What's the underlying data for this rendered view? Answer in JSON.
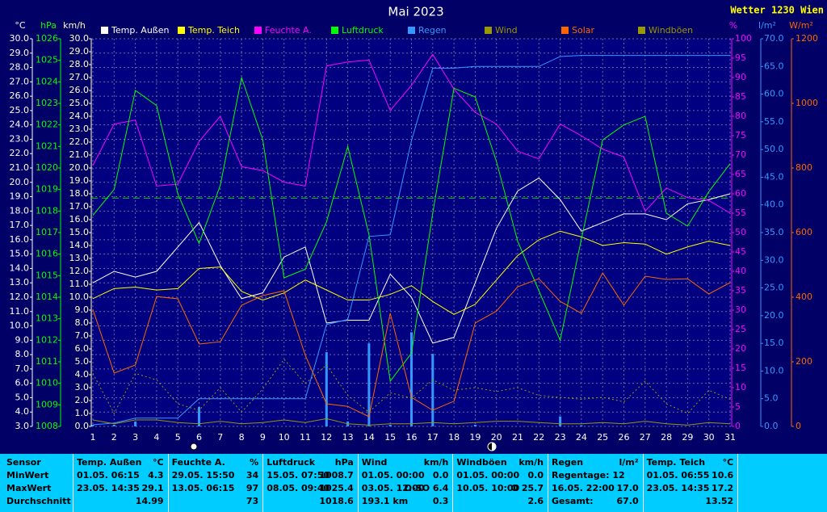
{
  "chart_data": {
    "type": "line",
    "title": "Mai 2023",
    "station": "Wetter 1230 Wien",
    "x": [
      1,
      2,
      3,
      4,
      5,
      6,
      7,
      8,
      9,
      10,
      11,
      12,
      13,
      14,
      15,
      16,
      17,
      18,
      19,
      20,
      21,
      22,
      23,
      24,
      25,
      26,
      27,
      28,
      29,
      30,
      31
    ],
    "xlim": [
      1,
      31
    ],
    "ylabel": "°C",
    "ylim": [
      3,
      30
    ],
    "yticks": [
      {
        "value": 3,
        "label": "3.0"
      },
      {
        "value": 4,
        "label": "4.0"
      },
      {
        "value": 5,
        "label": "5.0"
      },
      {
        "value": 6,
        "label": "6.0"
      },
      {
        "value": 7,
        "label": "7.0"
      },
      {
        "value": 8,
        "label": "8.0"
      },
      {
        "value": 9,
        "label": "9.0"
      },
      {
        "value": 10,
        "label": "10.0"
      },
      {
        "value": 11,
        "label": "11.0"
      },
      {
        "value": 12,
        "label": "12.0"
      },
      {
        "value": 13,
        "label": "13.0"
      },
      {
        "value": 14,
        "label": "14.0"
      },
      {
        "value": 15,
        "label": "15.0"
      },
      {
        "value": 16,
        "label": "16.0"
      },
      {
        "value": 17,
        "label": "17.0"
      },
      {
        "value": 18,
        "label": "18.0"
      },
      {
        "value": 19,
        "label": "19.0"
      },
      {
        "value": 20,
        "label": "20.0"
      },
      {
        "value": 21,
        "label": "21.0"
      },
      {
        "value": 22,
        "label": "22.0"
      },
      {
        "value": 23,
        "label": "23.0"
      },
      {
        "value": 24,
        "label": "24.0"
      },
      {
        "value": 25,
        "label": "25.0"
      },
      {
        "value": 26,
        "label": "26.0"
      },
      {
        "value": 27,
        "label": "27.0"
      },
      {
        "value": 28,
        "label": "28.0"
      },
      {
        "value": 29,
        "label": "29.0"
      },
      {
        "value": 30,
        "label": "30.0"
      }
    ],
    "y2label": "hPa",
    "y2lim": [
      1008,
      1026
    ],
    "y2ticks": [
      1008,
      1009,
      1010,
      1011,
      1012,
      1013,
      1014,
      1015,
      1016,
      1017,
      1018,
      1019,
      1020,
      1021,
      1022,
      1023,
      1024,
      1025,
      1026
    ],
    "y3label": "km/h",
    "y3lim": [
      0,
      30
    ],
    "y3ticks": [
      {
        "value": 0,
        "label": "0.0"
      },
      {
        "value": 1,
        "label": "1.0"
      },
      {
        "value": 2,
        "label": "2.0"
      },
      {
        "value": 3,
        "label": "3.0"
      },
      {
        "value": 4,
        "label": "4.0"
      },
      {
        "value": 5,
        "label": "5.0"
      },
      {
        "value": 6,
        "label": "6.0"
      },
      {
        "value": 7,
        "label": "7.0"
      },
      {
        "value": 8,
        "label": "8.0"
      },
      {
        "value": 9,
        "label": "9.0"
      },
      {
        "value": 10,
        "label": "10.0"
      },
      {
        "value": 11,
        "label": "11.0"
      },
      {
        "value": 12,
        "label": "12.0"
      },
      {
        "value": 13,
        "label": "13.0"
      },
      {
        "value": 14,
        "label": "14.0"
      },
      {
        "value": 15,
        "label": "15.0"
      },
      {
        "value": 16,
        "label": "16.0"
      },
      {
        "value": 17,
        "label": "17.0"
      },
      {
        "value": 18,
        "label": "18.0"
      },
      {
        "value": 19,
        "label": "19.0"
      },
      {
        "value": 20,
        "label": "20.0"
      },
      {
        "value": 21,
        "label": "21.0"
      },
      {
        "value": 22,
        "label": "22.0"
      },
      {
        "value": 23,
        "label": "23.0"
      },
      {
        "value": 24,
        "label": "24.0"
      },
      {
        "value": 25,
        "label": "25.0"
      },
      {
        "value": 26,
        "label": "26.0"
      },
      {
        "value": 27,
        "label": "27.0"
      },
      {
        "value": 28,
        "label": "28.0"
      },
      {
        "value": 29,
        "label": "29.0"
      },
      {
        "value": 30,
        "label": "30.0"
      }
    ],
    "y4label": "%",
    "y4lim": [
      0,
      100
    ],
    "y4ticks": [
      0,
      5,
      10,
      15,
      20,
      25,
      30,
      35,
      40,
      45,
      50,
      55,
      60,
      65,
      70,
      75,
      80,
      85,
      90,
      95,
      100
    ],
    "y5label": "l/m²",
    "y5lim": [
      0,
      70
    ],
    "y5ticks": [
      {
        "value": 0,
        "label": "0.0"
      },
      {
        "value": 5,
        "label": "5.0"
      },
      {
        "value": 10,
        "label": "10.0"
      },
      {
        "value": 15,
        "label": "15.0"
      },
      {
        "value": 20,
        "label": "20.0"
      },
      {
        "value": 25,
        "label": "25.0"
      },
      {
        "value": 30,
        "label": "30.0"
      },
      {
        "value": 35,
        "label": "35.0"
      },
      {
        "value": 40,
        "label": "40.0"
      },
      {
        "value": 45,
        "label": "45.0"
      },
      {
        "value": 50,
        "label": "50.0"
      },
      {
        "value": 55,
        "label": "55.0"
      },
      {
        "value": 60,
        "label": "60.0"
      },
      {
        "value": 65,
        "label": "65.0"
      },
      {
        "value": 70,
        "label": "70.0"
      }
    ],
    "y6label": "W/m²",
    "y6lim": [
      0,
      1200
    ],
    "y6ticks": [
      0,
      200,
      400,
      600,
      800,
      1000,
      1200
    ],
    "grid": true,
    "series": [
      {
        "name": "Temp. Außen",
        "color": "#ffffff",
        "axis": "y",
        "values": [
          13.0,
          13.8,
          13.4,
          13.8,
          15.5,
          17.2,
          14.2,
          11.9,
          12.3,
          14.8,
          15.5,
          10.2,
          10.4,
          10.4,
          13.6,
          12.0,
          8.8,
          9.2,
          13.0,
          16.8,
          19.4,
          20.3,
          18.8,
          16.6,
          17.2,
          17.8,
          17.8,
          17.4,
          18.5,
          18.8,
          19.2
        ]
      },
      {
        "name": "Temp. Teich",
        "color": "#ffff00",
        "axis": "y",
        "values": [
          11.9,
          12.6,
          12.7,
          12.5,
          12.6,
          14.0,
          14.1,
          12.4,
          11.8,
          12.3,
          13.2,
          12.5,
          11.8,
          11.8,
          12.2,
          12.8,
          11.7,
          10.8,
          11.5,
          13.2,
          14.9,
          16.0,
          16.6,
          16.2,
          15.6,
          15.8,
          15.7,
          15.0,
          15.5,
          15.9,
          15.6
        ]
      },
      {
        "name": "Feuchte A.",
        "color": "#ff00ff",
        "axis": "y4",
        "values": [
          67.3,
          78,
          79,
          62,
          62.5,
          73.5,
          80,
          67,
          66,
          63,
          62,
          93,
          94,
          94.5,
          81.5,
          88,
          96,
          87,
          81,
          78,
          71,
          69,
          78,
          75,
          71.5,
          69.5,
          55.5,
          61.5,
          59,
          58.3,
          55
        ]
      },
      {
        "name": "Luftdruck",
        "color": "#00ff00",
        "axis": "y2",
        "values": [
          1017.8,
          1019.0,
          1023.6,
          1022.9,
          1018.8,
          1016.5,
          1019.2,
          1024.2,
          1021.3,
          1014.9,
          1015.3,
          1017.5,
          1021.0,
          1016.9,
          1010.1,
          1011.4,
          1017.9,
          1023.7,
          1023.3,
          1020.3,
          1016.6,
          1014.3,
          1012.0,
          1016.7,
          1021.3,
          1022.0,
          1022.4,
          1017.9,
          1017.3,
          1018.9,
          1020.2
        ]
      },
      {
        "name": "Regen",
        "color": "#3399ff",
        "axis": "y5",
        "values": [
          0.3,
          0.6,
          1.5,
          1.5,
          1.5,
          5.0,
          5.0,
          5.0,
          5.0,
          5.0,
          5.0,
          18.4,
          19.3,
          34.3,
          34.6,
          51.6,
          64.7,
          64.7,
          65.0,
          65.0,
          65.0,
          65.0,
          66.8,
          67.0,
          67.0,
          67.0,
          67.0,
          67.0,
          67.0,
          67.0,
          67.0
        ],
        "daily": [
          0.3,
          0.3,
          0.9,
          0,
          0,
          3.5,
          0,
          0,
          0,
          0,
          0,
          13.4,
          0.9,
          15.0,
          0.3,
          17.0,
          13.1,
          0,
          0.3,
          0,
          0,
          0,
          1.8,
          0.2,
          0,
          0,
          0,
          0,
          0,
          0,
          0
        ]
      },
      {
        "name": "Wind",
        "color": "#999900",
        "axis": "y3",
        "style": "dotted",
        "values": [
          4.1,
          1.0,
          4.1,
          3.6,
          1.75,
          1.25,
          3.0,
          1.1,
          2.9,
          5.2,
          3.3,
          4.75,
          2.4,
          1.1,
          2.6,
          2.2,
          3.6,
          2.8,
          3.0,
          2.7,
          3.0,
          2.4,
          2.25,
          2.1,
          2.25,
          1.9,
          3.5,
          1.75,
          1.0,
          2.8,
          2.1
        ]
      },
      {
        "name": "Solar",
        "color": "#ff6600",
        "axis": "y6",
        "values": [
          362,
          165,
          190,
          402,
          395,
          255,
          262,
          375,
          405,
          420,
          220,
          70,
          62,
          30,
          350,
          90,
          50,
          78,
          320,
          357,
          432,
          457,
          387,
          350,
          475,
          375,
          465,
          455,
          457,
          410,
          445
        ]
      },
      {
        "name": "Windböen",
        "color": "#999900",
        "axis": "y3",
        "values": [
          0.5,
          0.2,
          0.5,
          0.5,
          0.3,
          0.2,
          0.4,
          0.2,
          0.3,
          0.5,
          0.3,
          0.6,
          0.2,
          0.1,
          0.2,
          0.2,
          0.3,
          0.2,
          0.3,
          0.4,
          0.4,
          0.3,
          0.2,
          0.2,
          0.3,
          0.2,
          0.4,
          0.2,
          0.1,
          0.3,
          0.2
        ]
      }
    ]
  },
  "table": {
    "row_labels": [
      "Sensor",
      "MinWert",
      "MaxWert",
      "Durchschnitt"
    ],
    "columns": [
      {
        "name": "Temp. Außen",
        "unit": "°C",
        "rows": [
          {
            "l": "01.05. 06:15",
            "r": "4.3"
          },
          {
            "l": "23.05. 14:35",
            "r": "29.1"
          },
          {
            "r": "14.99"
          }
        ]
      },
      {
        "name": "Feuchte A.",
        "unit": "%",
        "rows": [
          {
            "l": "29.05. 15:50",
            "r": "34"
          },
          {
            "l": "13.05. 06:15",
            "r": "97"
          },
          {
            "r": "73"
          }
        ]
      },
      {
        "name": "Luftdruck",
        "unit": "hPa",
        "rows": [
          {
            "l": "15.05. 07:50",
            "r": "1008.7"
          },
          {
            "l": "08.05. 09:40",
            "r": "1025.4"
          },
          {
            "r": "1018.6"
          }
        ]
      },
      {
        "name": "Wind",
        "unit": "km/h",
        "rows": [
          {
            "l": "01.05. 00:00",
            "r": "0.0"
          },
          {
            "l": "03.05. 12:00",
            "r": "O-SO 6.4"
          },
          {
            "l": "193.1 km",
            "r": "0.3"
          }
        ]
      },
      {
        "name": "Windböen",
        "unit": "km/h",
        "rows": [
          {
            "l": "01.05. 00:00",
            "r": "0.0"
          },
          {
            "l": "10.05. 10:00",
            "r": "O 25.7"
          },
          {
            "r": "2.6"
          }
        ]
      },
      {
        "name": "Regen",
        "unit": "l/m²",
        "rows": [
          {
            "l": "Regentage: 12"
          },
          {
            "l": "16.05. 22:00",
            "r": "17.0"
          },
          {
            "l": "Gesamt:",
            "r": "67.0"
          }
        ]
      },
      {
        "name": "Temp. Teich",
        "unit": "°C",
        "rows": [
          {
            "l": "01.05. 06:55",
            "r": "10.6"
          },
          {
            "l": "23.05. 14:35",
            "r": "17.2"
          },
          {
            "r": "13.52"
          }
        ]
      }
    ]
  }
}
